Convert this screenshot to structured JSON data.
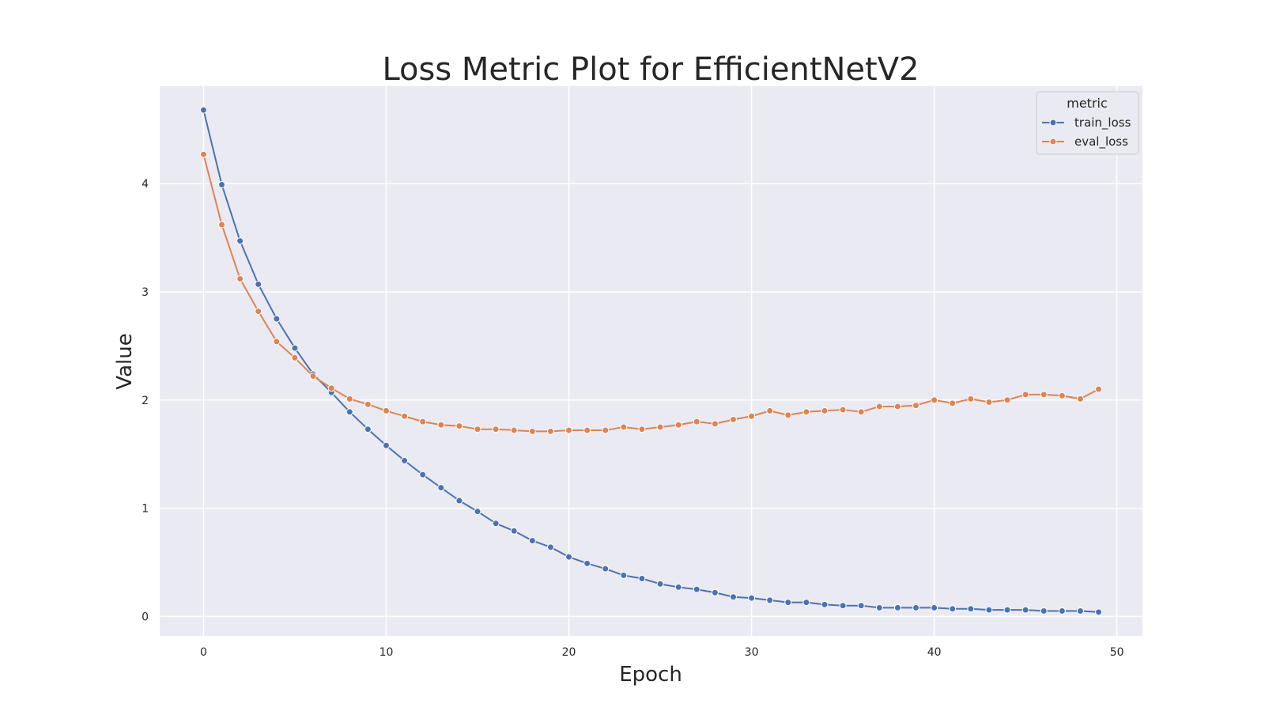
{
  "chart_data": {
    "type": "line",
    "title": "Loss Metric Plot for EfficientNetV2",
    "xlabel": "Epoch",
    "ylabel": "Value",
    "xlim": [
      -2.4,
      51.4
    ],
    "ylim": [
      -0.18,
      4.9
    ],
    "xticks": [
      0,
      10,
      20,
      30,
      40,
      50
    ],
    "yticks": [
      0,
      1,
      2,
      3,
      4
    ],
    "grid": true,
    "legend": {
      "title": "metric",
      "placement": "top-right"
    },
    "x": [
      0,
      1,
      2,
      3,
      4,
      5,
      6,
      7,
      8,
      9,
      10,
      11,
      12,
      13,
      14,
      15,
      16,
      17,
      18,
      19,
      20,
      21,
      22,
      23,
      24,
      25,
      26,
      27,
      28,
      29,
      30,
      31,
      32,
      33,
      34,
      35,
      36,
      37,
      38,
      39,
      40,
      41,
      42,
      43,
      44,
      45,
      46,
      47,
      48,
      49
    ],
    "series": [
      {
        "name": "train_loss",
        "color": "#4c72b0",
        "values": [
          4.68,
          3.99,
          3.47,
          3.07,
          2.75,
          2.48,
          2.24,
          2.07,
          1.89,
          1.73,
          1.58,
          1.44,
          1.31,
          1.19,
          1.07,
          0.97,
          0.86,
          0.79,
          0.7,
          0.64,
          0.55,
          0.49,
          0.44,
          0.38,
          0.35,
          0.3,
          0.27,
          0.25,
          0.22,
          0.18,
          0.17,
          0.15,
          0.13,
          0.13,
          0.11,
          0.1,
          0.1,
          0.08,
          0.08,
          0.08,
          0.08,
          0.07,
          0.07,
          0.06,
          0.06,
          0.06,
          0.05,
          0.05,
          0.05,
          0.04
        ]
      },
      {
        "name": "eval_loss",
        "color": "#dd8452",
        "values": [
          4.27,
          3.62,
          3.12,
          2.82,
          2.54,
          2.39,
          2.22,
          2.11,
          2.01,
          1.96,
          1.9,
          1.85,
          1.8,
          1.77,
          1.76,
          1.73,
          1.73,
          1.72,
          1.71,
          1.71,
          1.72,
          1.72,
          1.72,
          1.75,
          1.73,
          1.75,
          1.77,
          1.8,
          1.78,
          1.82,
          1.85,
          1.9,
          1.86,
          1.89,
          1.9,
          1.91,
          1.89,
          1.94,
          1.94,
          1.95,
          2.0,
          1.97,
          2.01,
          1.98,
          2.0,
          2.05,
          2.05,
          2.04,
          2.01,
          2.1
        ]
      }
    ]
  }
}
